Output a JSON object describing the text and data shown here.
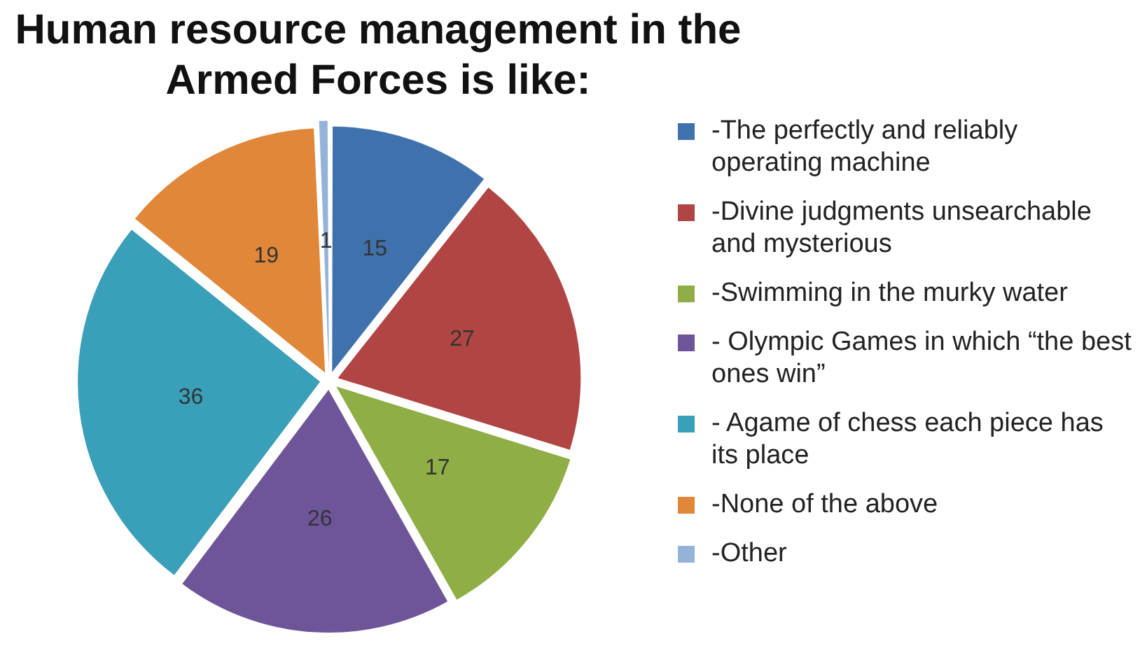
{
  "chart_data": {
    "type": "pie",
    "title": "Human resource management in the Armed Forces is like:",
    "categories": [
      "-The perfectly and reliably operating machine",
      "-Divine judgments unsearchable and mysterious",
      "-Swimming in the murky water",
      "- Olympic Games in which “the best ones win”",
      "- Agame of chess each piece has its place",
      "-None of the above",
      "-Other"
    ],
    "values": [
      15,
      27,
      17,
      26,
      36,
      19,
      1
    ],
    "colors": [
      "#3f72ad",
      "#b14543",
      "#8fae46",
      "#6e559a",
      "#3a9fb8",
      "#e0873a",
      "#94b3d9"
    ],
    "data_labels": true,
    "legend": "right"
  }
}
